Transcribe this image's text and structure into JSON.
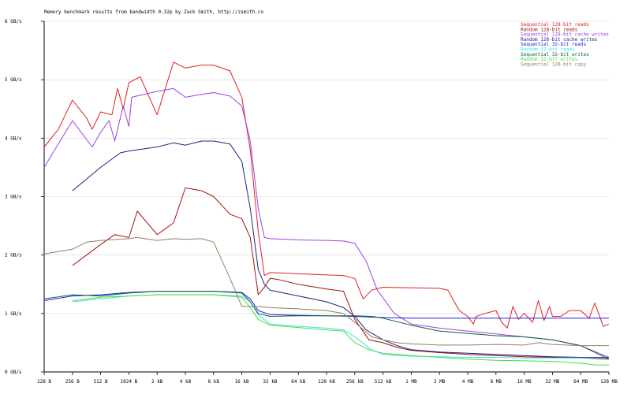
{
  "chart_data": {
    "type": "line",
    "title": "Memory benchmark results from bandwidth 0.32p by Zack Smith, http://zsmith.co",
    "xscale": "log2",
    "x_ticks": [
      {
        "v": 7,
        "label": "128 B"
      },
      {
        "v": 8,
        "label": "256 B"
      },
      {
        "v": 9,
        "label": "512 B"
      },
      {
        "v": 10,
        "label": "1024 B"
      },
      {
        "v": 11,
        "label": "2 kB"
      },
      {
        "v": 12,
        "label": "4 kB"
      },
      {
        "v": 13,
        "label": "8 kB"
      },
      {
        "v": 14,
        "label": "16 kB"
      },
      {
        "v": 15,
        "label": "32 kB"
      },
      {
        "v": 16,
        "label": "64 kB"
      },
      {
        "v": 17,
        "label": "128 kB"
      },
      {
        "v": 18,
        "label": "256 kB"
      },
      {
        "v": 19,
        "label": "512 kB"
      },
      {
        "v": 20,
        "label": "1 MB"
      },
      {
        "v": 21,
        "label": "2 MB"
      },
      {
        "v": 22,
        "label": "4 MB"
      },
      {
        "v": 23,
        "label": "8 MB"
      },
      {
        "v": 24,
        "label": "16 MB"
      },
      {
        "v": 25,
        "label": "32 MB"
      },
      {
        "v": 26,
        "label": "64 MB"
      },
      {
        "v": 27,
        "label": "128 MB"
      }
    ],
    "y_ticks": [
      {
        "v": 0,
        "label": "0 GB/s"
      },
      {
        "v": 1,
        "label": "1 GB/s"
      },
      {
        "v": 2,
        "label": "2 GB/s"
      },
      {
        "v": 3,
        "label": "3 GB/s"
      },
      {
        "v": 4,
        "label": "4 GB/s"
      },
      {
        "v": 5,
        "label": "5 GB/s"
      },
      {
        "v": 6,
        "label": "6 GB/s"
      }
    ],
    "xlim": [
      7,
      27
    ],
    "ylim": [
      0,
      6
    ],
    "legend_position": "top-right",
    "series": [
      {
        "name": "Sequential 128-bit reads",
        "color": "#e02020",
        "points": [
          [
            7,
            3.85
          ],
          [
            7.5,
            4.15
          ],
          [
            8,
            4.65
          ],
          [
            8.5,
            4.35
          ],
          [
            8.7,
            4.15
          ],
          [
            9,
            4.45
          ],
          [
            9.4,
            4.4
          ],
          [
            9.6,
            4.85
          ],
          [
            9.8,
            4.5
          ],
          [
            10,
            4.95
          ],
          [
            10.4,
            5.05
          ],
          [
            11,
            4.4
          ],
          [
            11.58,
            5.3
          ],
          [
            12,
            5.2
          ],
          [
            12.58,
            5.25
          ],
          [
            13,
            5.25
          ],
          [
            13.58,
            5.15
          ],
          [
            14,
            4.7
          ],
          [
            14.3,
            3.8
          ],
          [
            14.58,
            2.4
          ],
          [
            14.8,
            1.65
          ],
          [
            15,
            1.7
          ],
          [
            16,
            1.68
          ],
          [
            17,
            1.66
          ],
          [
            17.6,
            1.65
          ],
          [
            18,
            1.6
          ],
          [
            18.3,
            1.25
          ],
          [
            18.6,
            1.4
          ],
          [
            19,
            1.45
          ],
          [
            20,
            1.44
          ],
          [
            21,
            1.43
          ],
          [
            21.3,
            1.4
          ],
          [
            21.5,
            1.22
          ],
          [
            21.7,
            1.05
          ],
          [
            22,
            0.95
          ],
          [
            22.2,
            0.82
          ],
          [
            22.3,
            0.95
          ],
          [
            22.6,
            1.0
          ],
          [
            23,
            1.05
          ],
          [
            23.2,
            0.85
          ],
          [
            23.4,
            0.75
          ],
          [
            23.6,
            1.12
          ],
          [
            23.8,
            0.9
          ],
          [
            24,
            1.0
          ],
          [
            24.3,
            0.85
          ],
          [
            24.5,
            1.22
          ],
          [
            24.7,
            0.88
          ],
          [
            24.9,
            1.12
          ],
          [
            25,
            0.95
          ],
          [
            25.3,
            0.95
          ],
          [
            25.6,
            1.05
          ],
          [
            26,
            1.05
          ],
          [
            26.3,
            0.92
          ],
          [
            26.5,
            1.18
          ],
          [
            26.8,
            0.78
          ],
          [
            27,
            0.82
          ]
        ]
      },
      {
        "name": "Random 128-bit reads",
        "color": "#a01010",
        "points": [
          [
            8,
            1.82
          ],
          [
            8.5,
            2.0
          ],
          [
            9,
            2.18
          ],
          [
            9.5,
            2.35
          ],
          [
            10,
            2.3
          ],
          [
            10.3,
            2.75
          ],
          [
            11,
            2.35
          ],
          [
            11.58,
            2.55
          ],
          [
            12,
            3.15
          ],
          [
            12.58,
            3.1
          ],
          [
            13,
            3.0
          ],
          [
            13.58,
            2.7
          ],
          [
            14,
            2.62
          ],
          [
            14.3,
            2.3
          ],
          [
            14.58,
            1.32
          ],
          [
            14.8,
            1.45
          ],
          [
            15,
            1.6
          ],
          [
            15.3,
            1.58
          ],
          [
            16,
            1.5
          ],
          [
            17,
            1.42
          ],
          [
            17.6,
            1.38
          ],
          [
            18,
            0.9
          ],
          [
            18.5,
            0.55
          ],
          [
            19,
            0.5
          ],
          [
            19.5,
            0.42
          ],
          [
            20,
            0.37
          ],
          [
            21,
            0.33
          ],
          [
            22,
            0.3
          ],
          [
            23,
            0.28
          ],
          [
            24,
            0.26
          ],
          [
            25,
            0.25
          ],
          [
            26,
            0.24
          ],
          [
            27,
            0.22
          ]
        ]
      },
      {
        "name": "Sequential 128-bit cache writes",
        "color": "#a040e0",
        "points": [
          [
            7,
            3.5
          ],
          [
            8,
            4.3
          ],
          [
            8.7,
            3.85
          ],
          [
            9,
            4.1
          ],
          [
            9.3,
            4.3
          ],
          [
            9.5,
            3.95
          ],
          [
            9.8,
            4.55
          ],
          [
            10,
            4.2
          ],
          [
            10.1,
            4.7
          ],
          [
            11,
            4.8
          ],
          [
            11.58,
            4.85
          ],
          [
            12,
            4.7
          ],
          [
            12.58,
            4.75
          ],
          [
            13,
            4.78
          ],
          [
            13.58,
            4.72
          ],
          [
            14,
            4.55
          ],
          [
            14.3,
            3.95
          ],
          [
            14.58,
            2.8
          ],
          [
            14.8,
            2.3
          ],
          [
            15,
            2.28
          ],
          [
            16,
            2.26
          ],
          [
            17,
            2.25
          ],
          [
            17.6,
            2.24
          ],
          [
            18,
            2.2
          ],
          [
            18.4,
            1.9
          ],
          [
            18.8,
            1.4
          ],
          [
            19.4,
            1.0
          ],
          [
            20,
            0.82
          ],
          [
            21,
            0.75
          ],
          [
            22,
            0.7
          ],
          [
            23,
            0.65
          ],
          [
            24,
            0.6
          ],
          [
            25,
            0.55
          ],
          [
            26,
            0.45
          ],
          [
            27,
            0.25
          ]
        ]
      },
      {
        "name": "Random 128-bit cache writes",
        "color": "#202080",
        "points": [
          [
            8,
            3.1
          ],
          [
            9,
            3.5
          ],
          [
            9.7,
            3.75
          ],
          [
            10,
            3.78
          ],
          [
            11,
            3.85
          ],
          [
            11.58,
            3.92
          ],
          [
            12,
            3.88
          ],
          [
            12.58,
            3.95
          ],
          [
            13,
            3.95
          ],
          [
            13.58,
            3.9
          ],
          [
            14,
            3.6
          ],
          [
            14.3,
            2.8
          ],
          [
            14.58,
            1.75
          ],
          [
            14.8,
            1.5
          ],
          [
            15,
            1.4
          ],
          [
            16,
            1.3
          ],
          [
            17,
            1.2
          ],
          [
            17.6,
            1.1
          ],
          [
            18,
            0.95
          ],
          [
            18.4,
            0.72
          ],
          [
            19,
            0.55
          ],
          [
            19.5,
            0.45
          ],
          [
            20,
            0.38
          ],
          [
            21,
            0.34
          ],
          [
            22,
            0.32
          ],
          [
            23,
            0.3
          ],
          [
            24,
            0.28
          ],
          [
            25,
            0.26
          ],
          [
            26,
            0.25
          ],
          [
            27,
            0.25
          ]
        ]
      },
      {
        "name": "Sequential 32-bit reads",
        "color": "#2020e0",
        "points": [
          [
            7,
            1.22
          ],
          [
            8,
            1.3
          ],
          [
            9,
            1.32
          ],
          [
            10,
            1.36
          ],
          [
            11,
            1.38
          ],
          [
            12,
            1.38
          ],
          [
            13,
            1.38
          ],
          [
            14,
            1.36
          ],
          [
            14.3,
            1.25
          ],
          [
            14.58,
            1.05
          ],
          [
            15,
            0.98
          ],
          [
            16,
            0.97
          ],
          [
            17,
            0.96
          ],
          [
            18,
            0.95
          ],
          [
            19,
            0.93
          ],
          [
            20,
            0.92
          ],
          [
            21,
            0.92
          ],
          [
            22,
            0.92
          ],
          [
            23,
            0.92
          ],
          [
            24,
            0.92
          ],
          [
            25,
            0.92
          ],
          [
            26,
            0.92
          ],
          [
            27,
            0.92
          ]
        ]
      },
      {
        "name": "Random 32-bit reads",
        "color": "#40e0e0",
        "points": [
          [
            8,
            1.2
          ],
          [
            9,
            1.25
          ],
          [
            10,
            1.3
          ],
          [
            11,
            1.32
          ],
          [
            12,
            1.32
          ],
          [
            13,
            1.32
          ],
          [
            14,
            1.3
          ],
          [
            14.3,
            1.2
          ],
          [
            14.58,
            0.98
          ],
          [
            15,
            0.82
          ],
          [
            16,
            0.78
          ],
          [
            17,
            0.75
          ],
          [
            17.6,
            0.72
          ],
          [
            18,
            0.6
          ],
          [
            18.6,
            0.38
          ],
          [
            19,
            0.3
          ],
          [
            20,
            0.27
          ],
          [
            21,
            0.26
          ],
          [
            22,
            0.25
          ],
          [
            23,
            0.25
          ],
          [
            24,
            0.24
          ],
          [
            25,
            0.24
          ],
          [
            26,
            0.24
          ],
          [
            27,
            0.24
          ]
        ]
      },
      {
        "name": "Sequential 32-bit writes",
        "color": "#106040",
        "points": [
          [
            7,
            1.25
          ],
          [
            8,
            1.32
          ],
          [
            9,
            1.3
          ],
          [
            10,
            1.35
          ],
          [
            11,
            1.38
          ],
          [
            12,
            1.38
          ],
          [
            13,
            1.38
          ],
          [
            14,
            1.35
          ],
          [
            14.3,
            1.2
          ],
          [
            14.58,
            1.0
          ],
          [
            15,
            0.95
          ],
          [
            16,
            0.96
          ],
          [
            17,
            0.96
          ],
          [
            18,
            0.96
          ],
          [
            18.6,
            0.95
          ],
          [
            19,
            0.92
          ],
          [
            20,
            0.8
          ],
          [
            21,
            0.7
          ],
          [
            22,
            0.66
          ],
          [
            23,
            0.62
          ],
          [
            24,
            0.6
          ],
          [
            25,
            0.55
          ],
          [
            26,
            0.45
          ],
          [
            27,
            0.22
          ]
        ]
      },
      {
        "name": "Random 32-bit writes",
        "color": "#40e040",
        "points": [
          [
            8,
            1.22
          ],
          [
            9,
            1.28
          ],
          [
            10,
            1.3
          ],
          [
            11,
            1.32
          ],
          [
            12,
            1.32
          ],
          [
            13,
            1.32
          ],
          [
            14,
            1.28
          ],
          [
            14.3,
            1.1
          ],
          [
            14.58,
            0.9
          ],
          [
            15,
            0.8
          ],
          [
            16,
            0.76
          ],
          [
            17,
            0.72
          ],
          [
            17.6,
            0.7
          ],
          [
            18,
            0.5
          ],
          [
            18.5,
            0.38
          ],
          [
            19,
            0.32
          ],
          [
            20,
            0.28
          ],
          [
            21,
            0.25
          ],
          [
            22,
            0.22
          ],
          [
            23,
            0.2
          ],
          [
            24,
            0.19
          ],
          [
            25,
            0.18
          ],
          [
            26,
            0.15
          ],
          [
            26.5,
            0.12
          ],
          [
            27,
            0.12
          ]
        ]
      },
      {
        "name": "Sequential 128-bit copy",
        "color": "#908060",
        "points": [
          [
            7,
            2.02
          ],
          [
            8,
            2.1
          ],
          [
            8.5,
            2.22
          ],
          [
            9,
            2.25
          ],
          [
            10,
            2.28
          ],
          [
            10.3,
            2.3
          ],
          [
            11,
            2.25
          ],
          [
            11.58,
            2.28
          ],
          [
            12,
            2.27
          ],
          [
            12.58,
            2.28
          ],
          [
            13,
            2.22
          ],
          [
            13.58,
            1.6
          ],
          [
            14,
            1.12
          ],
          [
            14.58,
            1.12
          ],
          [
            15,
            1.1
          ],
          [
            16,
            1.08
          ],
          [
            17,
            1.05
          ],
          [
            17.6,
            1.0
          ],
          [
            18,
            0.85
          ],
          [
            18.6,
            0.6
          ],
          [
            19,
            0.55
          ],
          [
            19.5,
            0.5
          ],
          [
            20,
            0.48
          ],
          [
            21,
            0.46
          ],
          [
            22,
            0.46
          ],
          [
            23,
            0.47
          ],
          [
            24,
            0.46
          ],
          [
            24.5,
            0.5
          ],
          [
            25,
            0.47
          ],
          [
            26,
            0.45
          ],
          [
            27,
            0.45
          ]
        ]
      }
    ]
  }
}
